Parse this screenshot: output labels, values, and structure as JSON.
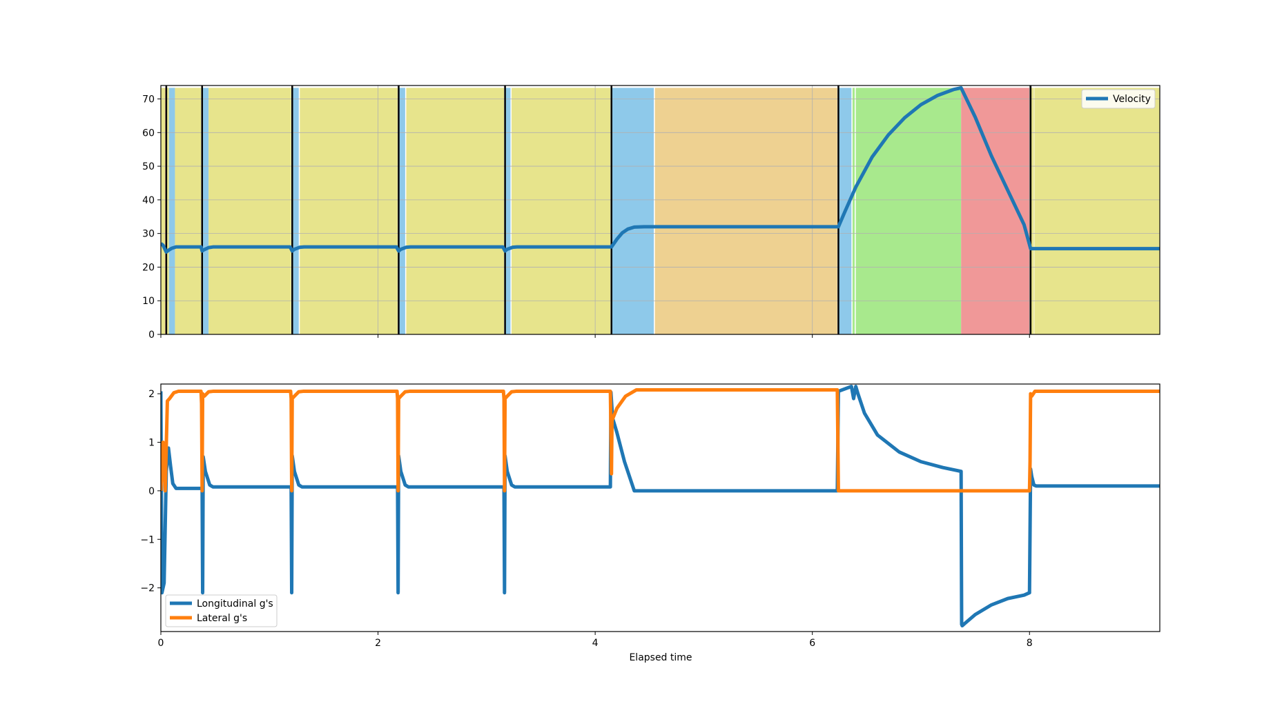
{
  "chart_data": [
    {
      "type": "line",
      "xlim": [
        0,
        9.2
      ],
      "ylim": [
        0,
        74
      ],
      "x_ticks": [
        0,
        2,
        4,
        6,
        8
      ],
      "y_ticks": [
        0,
        10,
        20,
        30,
        40,
        50,
        60,
        70
      ],
      "grid": true,
      "legend_position": "top-right",
      "bands": [
        {
          "start": 0.0,
          "end": 0.04,
          "color": "#e7e48c"
        },
        {
          "start": 0.04,
          "end": 0.055,
          "color": "#f09898"
        },
        {
          "start": 0.055,
          "end": 0.075,
          "color": "#e7e48c"
        },
        {
          "start": 0.075,
          "end": 0.13,
          "color": "#8ec9ea"
        },
        {
          "start": 0.13,
          "end": 0.37,
          "color": "#e7e48c"
        },
        {
          "start": 0.385,
          "end": 0.44,
          "color": "#8ec9ea"
        },
        {
          "start": 0.44,
          "end": 1.2,
          "color": "#e7e48c"
        },
        {
          "start": 1.215,
          "end": 1.27,
          "color": "#8ec9ea"
        },
        {
          "start": 1.28,
          "end": 2.18,
          "color": "#e7e48c"
        },
        {
          "start": 2.195,
          "end": 2.25,
          "color": "#8ec9ea"
        },
        {
          "start": 2.26,
          "end": 3.16,
          "color": "#e7e48c"
        },
        {
          "start": 3.175,
          "end": 3.22,
          "color": "#8ec9ea"
        },
        {
          "start": 3.23,
          "end": 4.14,
          "color": "#e7e48c"
        },
        {
          "start": 4.155,
          "end": 4.54,
          "color": "#8ec9ea"
        },
        {
          "start": 4.55,
          "end": 6.23,
          "color": "#eed191"
        },
        {
          "start": 6.245,
          "end": 6.36,
          "color": "#8ec9ea"
        },
        {
          "start": 6.37,
          "end": 6.39,
          "color": "#a8e98d"
        },
        {
          "start": 6.4,
          "end": 7.37,
          "color": "#a8e98d"
        },
        {
          "start": 7.37,
          "end": 8.0,
          "color": "#f09898"
        },
        {
          "start": 8.015,
          "end": 8.04,
          "color": "#e7e48c"
        },
        {
          "start": 8.045,
          "end": 9.2,
          "color": "#e7e48c"
        }
      ],
      "markers": [
        0.05,
        0.38,
        1.21,
        2.19,
        3.17,
        4.15,
        6.24,
        8.01
      ],
      "series": [
        {
          "name": "Velocity",
          "color": "#1f77b4",
          "x": [
            0,
            0.02,
            0.05,
            0.07,
            0.1,
            0.14,
            0.18,
            0.3,
            0.37,
            0.38,
            0.4,
            0.44,
            0.48,
            1.19,
            1.21,
            1.23,
            1.28,
            1.32,
            2.17,
            2.19,
            2.21,
            2.26,
            2.3,
            3.15,
            3.17,
            3.19,
            3.24,
            3.28,
            4.15,
            4.2,
            4.25,
            4.3,
            4.36,
            4.45,
            4.55,
            6.24,
            6.3,
            6.4,
            6.55,
            6.7,
            6.85,
            7.0,
            7.15,
            7.3,
            7.37,
            7.5,
            7.65,
            7.8,
            7.95,
            8.01,
            8.05,
            9.2
          ],
          "y": [
            27,
            26.5,
            24.5,
            25.0,
            25.6,
            26.0,
            26.0,
            26.0,
            26.0,
            24.8,
            25.2,
            25.8,
            26.0,
            26.0,
            24.8,
            25.3,
            25.9,
            26.0,
            26.0,
            24.8,
            25.3,
            25.9,
            26.0,
            26.0,
            24.8,
            25.3,
            25.9,
            26.0,
            26.0,
            28.3,
            30.2,
            31.3,
            31.9,
            32.0,
            32.0,
            32.0,
            36.5,
            43.8,
            52.7,
            59.3,
            64.4,
            68.3,
            71.0,
            72.8,
            73.3,
            64.6,
            53.0,
            42.8,
            32.6,
            25.5,
            25.5,
            25.5
          ]
        }
      ]
    },
    {
      "type": "line",
      "xlim": [
        0,
        9.2
      ],
      "ylim": [
        -2.9,
        2.2
      ],
      "x_ticks": [
        0,
        2,
        4,
        6,
        8
      ],
      "y_ticks": [
        -2,
        -1,
        0,
        1,
        2
      ],
      "xlabel": "Elapsed time",
      "grid": false,
      "legend_position": "bottom-left",
      "series": [
        {
          "name": "Longitudinal g's",
          "color": "#1f77b4",
          "x": [
            0,
            0.01,
            0.03,
            0.05,
            0.07,
            0.09,
            0.11,
            0.14,
            0.38,
            0.385,
            0.39,
            0.41,
            0.45,
            0.48,
            1.2,
            1.205,
            1.21,
            1.23,
            1.27,
            1.3,
            2.18,
            2.185,
            2.19,
            2.21,
            2.25,
            2.28,
            3.16,
            3.165,
            3.17,
            3.19,
            3.23,
            3.26,
            4.14,
            4.145,
            4.16,
            4.2,
            4.27,
            4.36,
            6.23,
            6.24,
            6.36,
            6.38,
            6.4,
            6.42,
            6.48,
            6.6,
            6.8,
            7.0,
            7.2,
            7.37,
            7.375,
            7.38,
            7.5,
            7.65,
            7.8,
            7.95,
            8.0,
            8.01,
            8.02,
            8.04,
            8.06,
            9.2
          ],
          "y": [
            2.05,
            -2.1,
            -1.9,
            0.4,
            0.88,
            0.5,
            0.15,
            0.05,
            0.05,
            -2.1,
            0.7,
            0.4,
            0.12,
            0.08,
            0.08,
            -2.1,
            0.72,
            0.4,
            0.12,
            0.08,
            0.08,
            -2.1,
            0.72,
            0.4,
            0.12,
            0.08,
            0.08,
            -2.1,
            0.72,
            0.4,
            0.12,
            0.08,
            0.08,
            2.03,
            1.5,
            1.2,
            0.6,
            0.0,
            0.0,
            2.05,
            2.15,
            1.9,
            2.15,
            2.0,
            1.6,
            1.15,
            0.8,
            0.6,
            0.48,
            0.4,
            -2.75,
            -2.78,
            -2.55,
            -2.35,
            -2.22,
            -2.15,
            -2.1,
            0.45,
            0.3,
            0.12,
            0.1,
            0.1
          ]
        },
        {
          "name": "Lateral g's",
          "color": "#ff7f0e",
          "x": [
            0,
            0.02,
            0.04,
            0.06,
            0.08,
            0.12,
            0.16,
            0.37,
            0.375,
            0.38,
            0.385,
            0.4,
            0.44,
            0.48,
            1.195,
            1.2,
            1.205,
            1.21,
            1.23,
            1.27,
            1.31,
            2.175,
            2.18,
            2.185,
            2.19,
            2.21,
            2.25,
            2.29,
            3.155,
            3.16,
            3.165,
            3.17,
            3.19,
            3.23,
            3.27,
            4.14,
            4.15,
            4.155,
            4.2,
            4.28,
            4.38,
            6.23,
            6.24,
            6.25,
            7.37,
            8.0,
            8.005,
            8.01,
            8.02,
            8.05,
            9.2
          ],
          "y": [
            0.0,
            1.0,
            0.0,
            1.85,
            1.9,
            2.02,
            2.05,
            2.05,
            1.8,
            0.0,
            2.0,
            1.95,
            2.04,
            2.05,
            2.05,
            1.9,
            0.0,
            1.9,
            1.95,
            2.04,
            2.05,
            2.05,
            1.9,
            0.0,
            1.9,
            1.95,
            2.04,
            2.05,
            2.05,
            1.9,
            0.0,
            1.9,
            1.95,
            2.04,
            2.05,
            2.05,
            0.35,
            1.45,
            1.7,
            1.95,
            2.08,
            2.08,
            0.0,
            0.0,
            0.0,
            0.0,
            0.6,
            2.0,
            1.95,
            2.05,
            2.05
          ]
        }
      ]
    }
  ]
}
